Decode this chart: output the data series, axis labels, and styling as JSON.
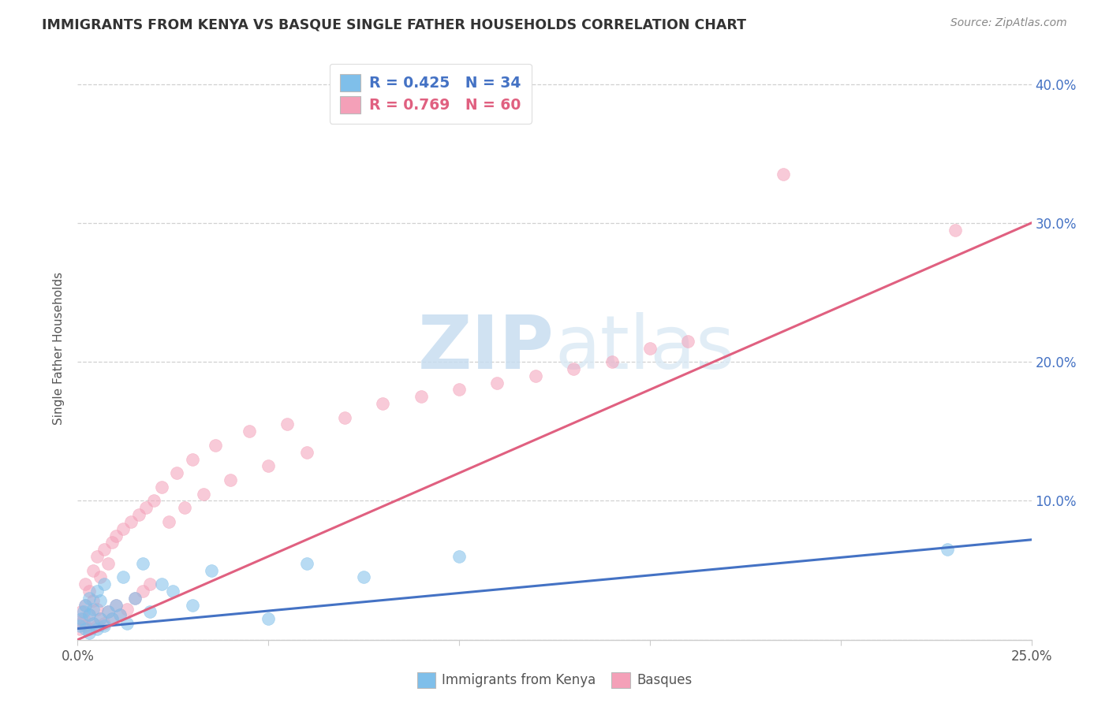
{
  "title": "IMMIGRANTS FROM KENYA VS BASQUE SINGLE FATHER HOUSEHOLDS CORRELATION CHART",
  "source": "Source: ZipAtlas.com",
  "ylabel": "Single Father Households",
  "xlim": [
    0.0,
    0.25
  ],
  "ylim": [
    0.0,
    0.42
  ],
  "yticks": [
    0.0,
    0.1,
    0.2,
    0.3,
    0.4
  ],
  "xticks": [
    0.0,
    0.05,
    0.1,
    0.15,
    0.2,
    0.25
  ],
  "watermark_zip": "ZIP",
  "watermark_atlas": "atlas",
  "legend_line1": "R = 0.425   N = 34",
  "legend_line2": "R = 0.769   N = 60",
  "blue_scatter_color": "#7fbfea",
  "pink_scatter_color": "#f4a0b8",
  "blue_line_color": "#4472c4",
  "pink_line_color": "#e06080",
  "blue_text_color": "#4472c4",
  "pink_text_color": "#e06080",
  "right_tick_color": "#4472c4",
  "grid_color": "#cccccc",
  "title_color": "#333333",
  "source_color": "#888888",
  "ylabel_color": "#555555",
  "bottom_label_color": "#555555",
  "kenya_x": [
    0.0005,
    0.001,
    0.0015,
    0.002,
    0.002,
    0.003,
    0.003,
    0.003,
    0.004,
    0.004,
    0.005,
    0.005,
    0.006,
    0.006,
    0.007,
    0.007,
    0.008,
    0.009,
    0.01,
    0.011,
    0.012,
    0.013,
    0.015,
    0.017,
    0.019,
    0.022,
    0.025,
    0.03,
    0.035,
    0.05,
    0.06,
    0.075,
    0.1,
    0.228
  ],
  "kenya_y": [
    0.01,
    0.015,
    0.02,
    0.008,
    0.025,
    0.005,
    0.018,
    0.03,
    0.012,
    0.022,
    0.008,
    0.035,
    0.015,
    0.028,
    0.01,
    0.04,
    0.02,
    0.015,
    0.025,
    0.018,
    0.045,
    0.012,
    0.03,
    0.055,
    0.02,
    0.04,
    0.035,
    0.025,
    0.05,
    0.015,
    0.055,
    0.045,
    0.06,
    0.065
  ],
  "basque_x": [
    0.0005,
    0.001,
    0.001,
    0.0015,
    0.002,
    0.002,
    0.002,
    0.003,
    0.003,
    0.003,
    0.004,
    0.004,
    0.004,
    0.005,
    0.005,
    0.005,
    0.006,
    0.006,
    0.007,
    0.007,
    0.008,
    0.008,
    0.009,
    0.009,
    0.01,
    0.01,
    0.011,
    0.012,
    0.013,
    0.014,
    0.015,
    0.016,
    0.017,
    0.018,
    0.019,
    0.02,
    0.022,
    0.024,
    0.026,
    0.028,
    0.03,
    0.033,
    0.036,
    0.04,
    0.045,
    0.05,
    0.055,
    0.06,
    0.07,
    0.08,
    0.09,
    0.1,
    0.11,
    0.12,
    0.13,
    0.14,
    0.15,
    0.16,
    0.185,
    0.23
  ],
  "basque_y": [
    0.008,
    0.012,
    0.02,
    0.015,
    0.01,
    0.025,
    0.04,
    0.008,
    0.018,
    0.035,
    0.012,
    0.028,
    0.05,
    0.01,
    0.022,
    0.06,
    0.015,
    0.045,
    0.012,
    0.065,
    0.02,
    0.055,
    0.015,
    0.07,
    0.025,
    0.075,
    0.018,
    0.08,
    0.022,
    0.085,
    0.03,
    0.09,
    0.035,
    0.095,
    0.04,
    0.1,
    0.11,
    0.085,
    0.12,
    0.095,
    0.13,
    0.105,
    0.14,
    0.115,
    0.15,
    0.125,
    0.155,
    0.135,
    0.16,
    0.17,
    0.175,
    0.18,
    0.185,
    0.19,
    0.195,
    0.2,
    0.21,
    0.215,
    0.335,
    0.295
  ],
  "kenya_line_x": [
    0.0,
    0.25
  ],
  "kenya_line_y": [
    0.008,
    0.072
  ],
  "basque_line_x": [
    0.0,
    0.25
  ],
  "basque_line_y": [
    0.0,
    0.3
  ]
}
